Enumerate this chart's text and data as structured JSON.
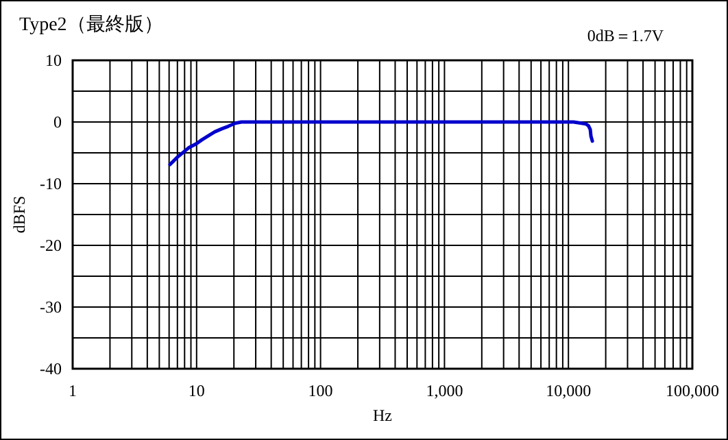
{
  "chart_data": {
    "type": "line",
    "title": "Type2（最終版）",
    "annotations": [
      "0dB＝1.7V"
    ],
    "xlabel": "Hz",
    "ylabel": "dBFS",
    "log": "x",
    "grid": true,
    "marker": "none",
    "line_style": "solid",
    "xlim": [
      1,
      100000
    ],
    "ylim": [
      -40,
      10
    ],
    "xticks": [
      {
        "value": 1,
        "label": "1"
      },
      {
        "value": 2,
        "label": null
      },
      {
        "value": 3,
        "label": null
      },
      {
        "value": 4,
        "label": null
      },
      {
        "value": 5,
        "label": null
      },
      {
        "value": 6,
        "label": null
      },
      {
        "value": 7,
        "label": null
      },
      {
        "value": 8,
        "label": null
      },
      {
        "value": 9,
        "label": null
      },
      {
        "value": 10,
        "label": "10"
      },
      {
        "value": 20,
        "label": null
      },
      {
        "value": 30,
        "label": null
      },
      {
        "value": 40,
        "label": null
      },
      {
        "value": 50,
        "label": null
      },
      {
        "value": 60,
        "label": null
      },
      {
        "value": 70,
        "label": null
      },
      {
        "value": 80,
        "label": null
      },
      {
        "value": 90,
        "label": null
      },
      {
        "value": 100,
        "label": "100"
      },
      {
        "value": 200,
        "label": null
      },
      {
        "value": 300,
        "label": null
      },
      {
        "value": 400,
        "label": null
      },
      {
        "value": 500,
        "label": null
      },
      {
        "value": 600,
        "label": null
      },
      {
        "value": 700,
        "label": null
      },
      {
        "value": 800,
        "label": null
      },
      {
        "value": 900,
        "label": null
      },
      {
        "value": 1000,
        "label": "1,000"
      },
      {
        "value": 2000,
        "label": null
      },
      {
        "value": 3000,
        "label": null
      },
      {
        "value": 4000,
        "label": null
      },
      {
        "value": 5000,
        "label": null
      },
      {
        "value": 6000,
        "label": null
      },
      {
        "value": 7000,
        "label": null
      },
      {
        "value": 8000,
        "label": null
      },
      {
        "value": 9000,
        "label": null
      },
      {
        "value": 10000,
        "label": "10,000"
      },
      {
        "value": 20000,
        "label": null
      },
      {
        "value": 30000,
        "label": null
      },
      {
        "value": 40000,
        "label": null
      },
      {
        "value": 50000,
        "label": null
      },
      {
        "value": 60000,
        "label": null
      },
      {
        "value": 70000,
        "label": null
      },
      {
        "value": 80000,
        "label": null
      },
      {
        "value": 90000,
        "label": null
      },
      {
        "value": 100000,
        "label": "100,000"
      }
    ],
    "yticks": [
      10,
      {
        "value": 5,
        "label": null
      },
      0,
      {
        "value": -5,
        "label": null
      },
      -10,
      {
        "value": -15,
        "label": null
      },
      -20,
      {
        "value": -25,
        "label": null
      },
      -30,
      {
        "value": -35,
        "label": null
      },
      -40
    ],
    "series": [
      {
        "color": "#0000cc",
        "x": [
          6.1,
          7,
          8.6,
          10,
          11,
          12.5,
          14,
          16,
          18,
          20.5,
          23,
          100,
          1000,
          10000,
          11000,
          13800,
          14500,
          15000,
          15200,
          15600
        ],
        "values": [
          -6.9,
          -5.7,
          -4.2,
          -3.5,
          -2.9,
          -2.2,
          -1.6,
          -1.1,
          -0.7,
          -0.2,
          0,
          0,
          0,
          0,
          0,
          -0.3,
          -0.6,
          -1.2,
          -2.3,
          -3.1
        ]
      }
    ]
  }
}
